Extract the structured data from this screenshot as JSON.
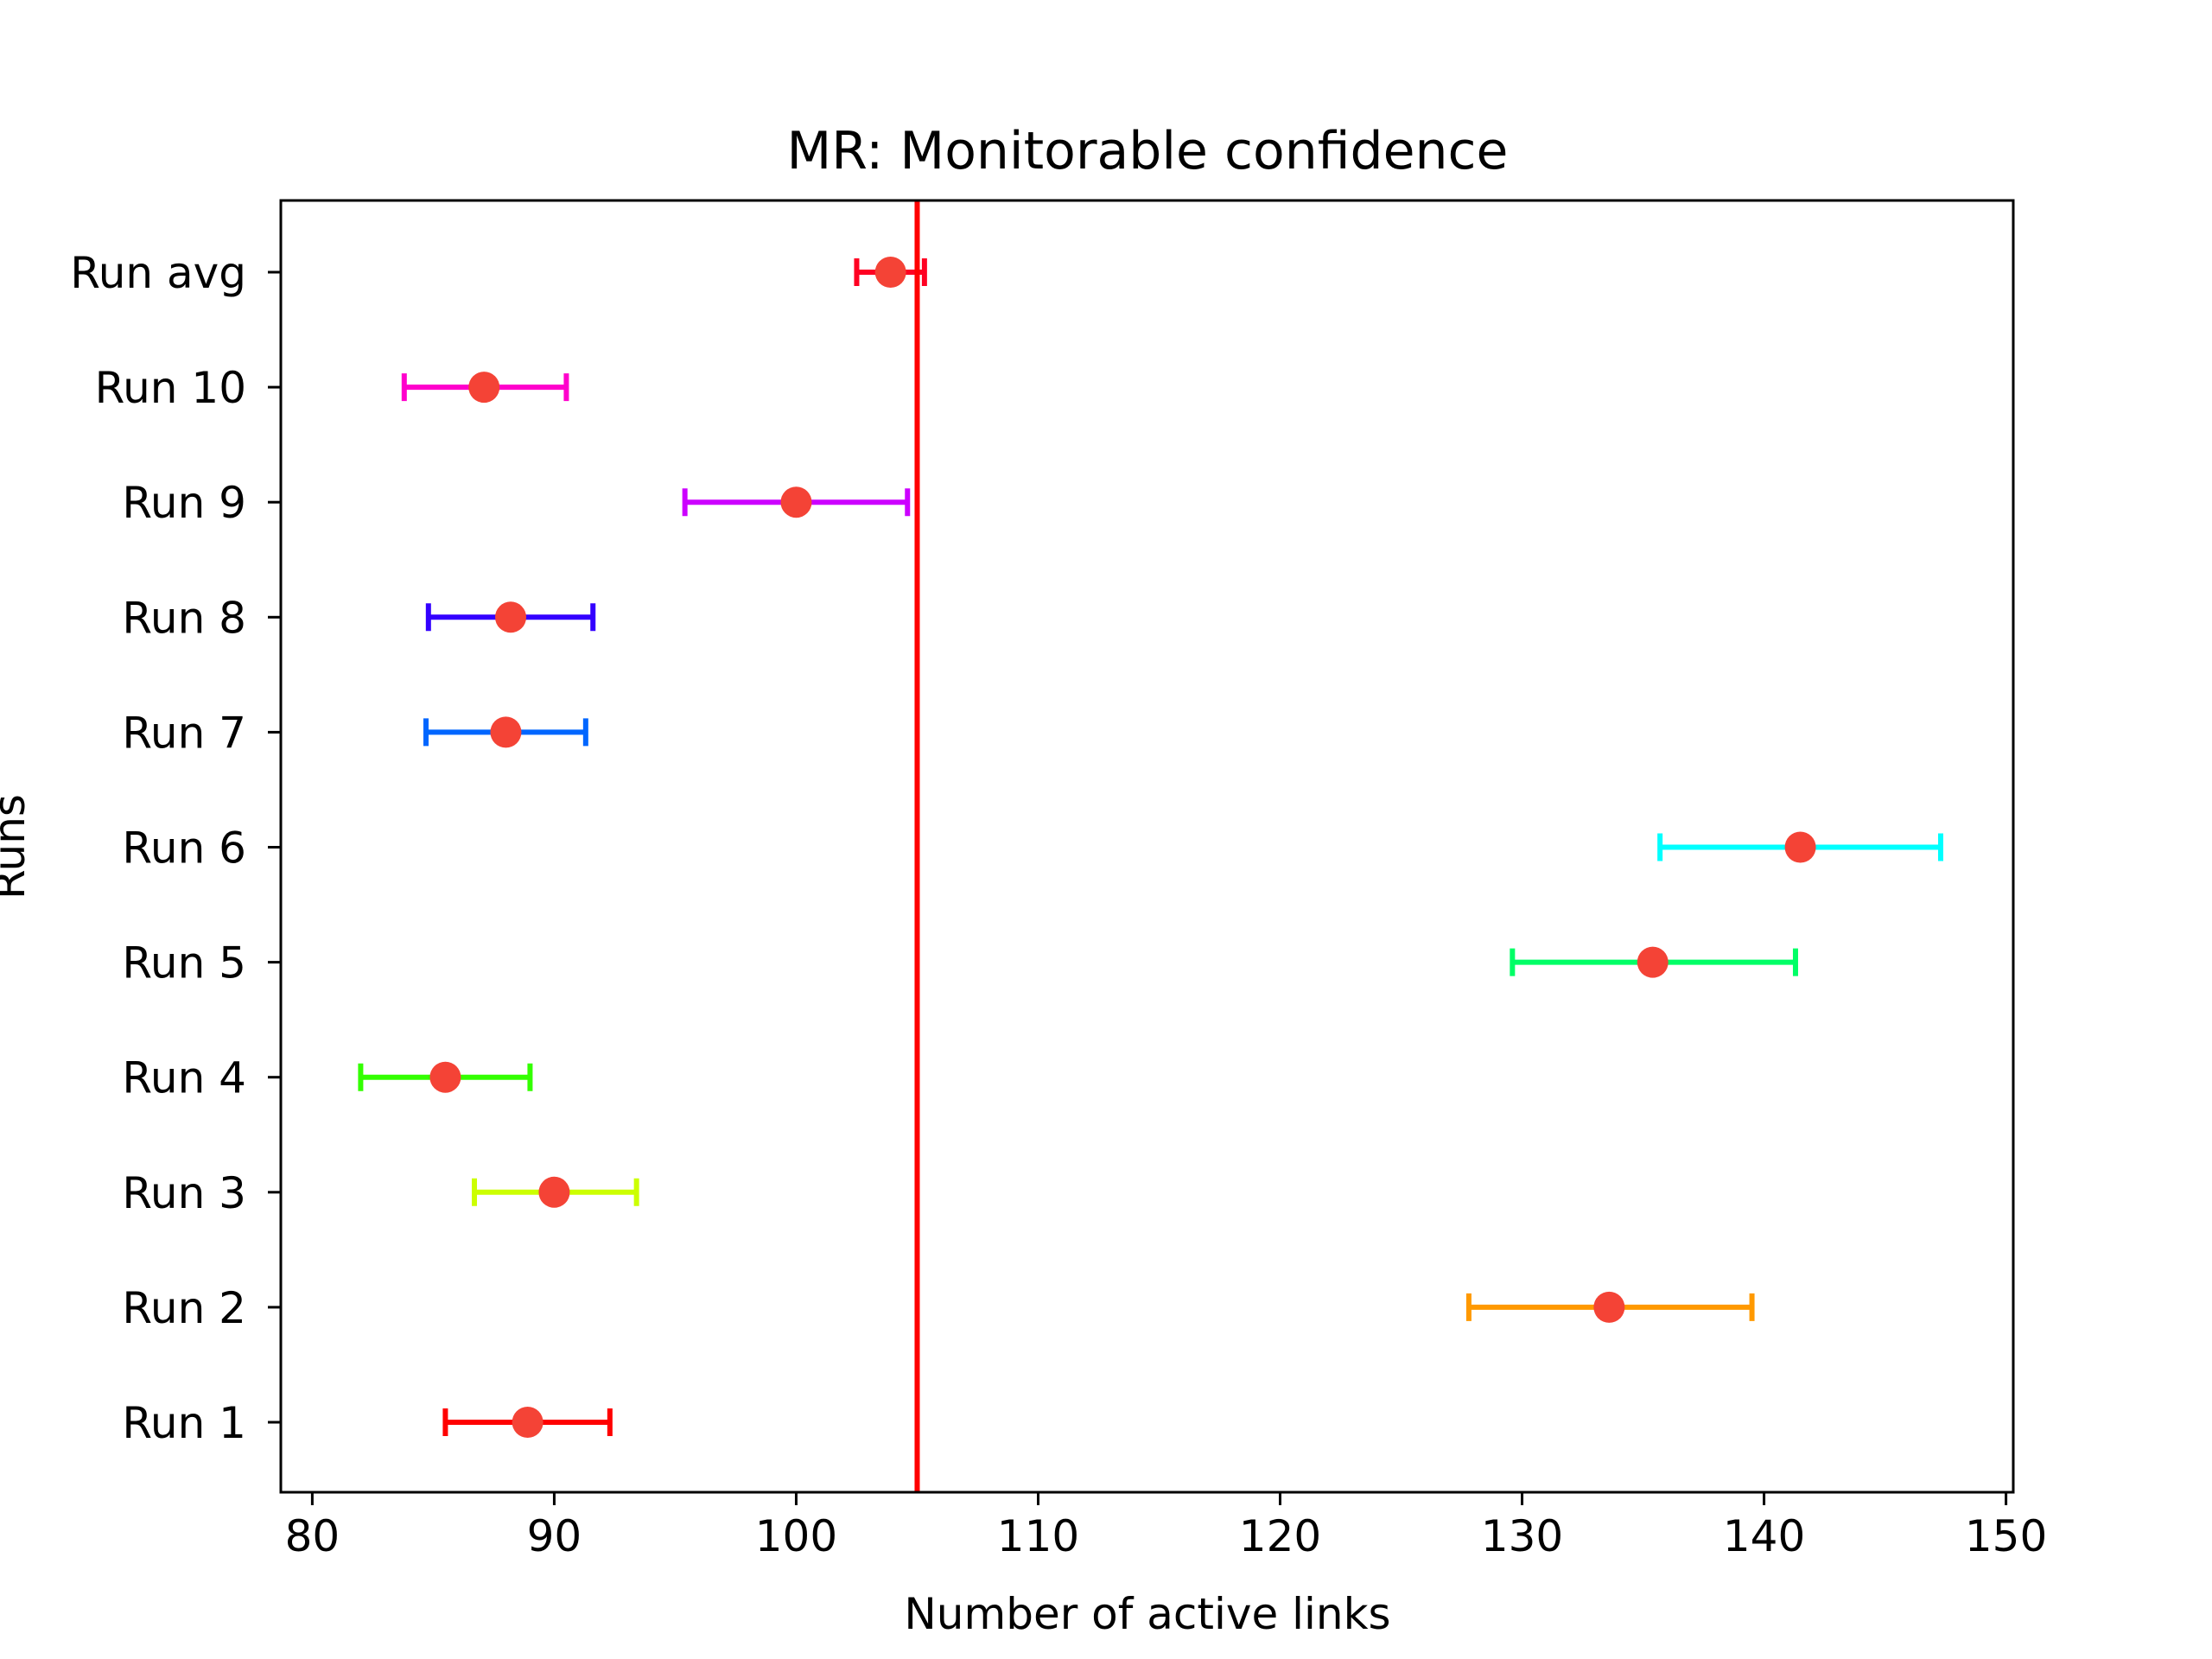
{
  "chart_data": {
    "type": "errorbar",
    "title": "MR: Monitorable confidence",
    "xlabel": "Number of active links",
    "ylabel": "Runs",
    "xlim": [
      78.7,
      150.3
    ],
    "xticks": [
      80,
      90,
      100,
      110,
      120,
      130,
      140,
      150
    ],
    "grid": false,
    "categories": [
      "Run 1",
      "Run 2",
      "Run 3",
      "Run 4",
      "Run 5",
      "Run 6",
      "Run 7",
      "Run 8",
      "Run 9",
      "Run 10",
      "Run avg"
    ],
    "points": [
      {
        "label": "Run 1",
        "value": 88.9,
        "low": 85.5,
        "high": 92.3,
        "color": "#ff0000"
      },
      {
        "label": "Run 2",
        "value": 133.6,
        "low": 127.8,
        "high": 139.5,
        "color": "#ff9900"
      },
      {
        "label": "Run 3",
        "value": 90.0,
        "low": 86.7,
        "high": 93.4,
        "color": "#ccff00"
      },
      {
        "label": "Run 4",
        "value": 85.5,
        "low": 82.0,
        "high": 89.0,
        "color": "#33ff00"
      },
      {
        "label": "Run 5",
        "value": 135.4,
        "low": 129.6,
        "high": 141.3,
        "color": "#00ff66"
      },
      {
        "label": "Run 6",
        "value": 141.5,
        "low": 135.7,
        "high": 147.3,
        "color": "#00ffff"
      },
      {
        "label": "Run 7",
        "value": 88.0,
        "low": 84.7,
        "high": 91.3,
        "color": "#0066ff"
      },
      {
        "label": "Run 8",
        "value": 88.2,
        "low": 84.8,
        "high": 91.6,
        "color": "#3300ff"
      },
      {
        "label": "Run 9",
        "value": 100.0,
        "low": 95.4,
        "high": 104.6,
        "color": "#cc00ff"
      },
      {
        "label": "Run 10",
        "value": 87.1,
        "low": 83.8,
        "high": 90.5,
        "color": "#ff00cc"
      },
      {
        "label": "Run avg",
        "value": 103.9,
        "low": 102.5,
        "high": 105.3,
        "color": "#ff0022"
      }
    ],
    "marker_color": "#f44336",
    "reference_line": {
      "x": 105.0,
      "color": "#ff0000"
    }
  }
}
